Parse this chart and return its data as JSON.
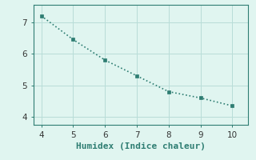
{
  "x": [
    4,
    5,
    6,
    7,
    8,
    9,
    10
  ],
  "y": [
    7.2,
    6.45,
    5.8,
    5.3,
    4.8,
    4.6,
    4.35
  ],
  "line_color": "#2e7d72",
  "marker": "s",
  "marker_size": 2.5,
  "linestyle": "dotted",
  "linewidth": 1.2,
  "xlabel": "Humidex (Indice chaleur)",
  "xlabel_fontsize": 8,
  "background_color": "#e0f5f0",
  "grid_color": "#b8ddd8",
  "xlim": [
    3.75,
    10.5
  ],
  "ylim": [
    3.75,
    7.55
  ],
  "xticks": [
    4,
    5,
    6,
    7,
    8,
    9,
    10
  ],
  "yticks": [
    4,
    5,
    6,
    7
  ],
  "tick_fontsize": 7.5,
  "spine_color": "#2e7d72"
}
